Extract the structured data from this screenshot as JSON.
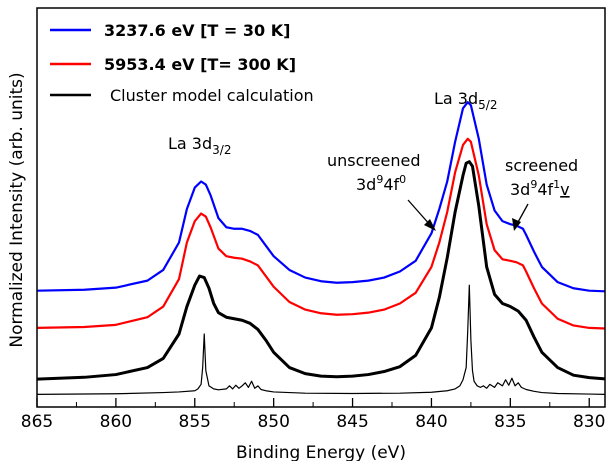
{
  "chart_data": {
    "type": "line",
    "xlabel": "Binding Energy (eV)",
    "ylabel": "Normalized Intensity (arb. units)",
    "xlim": [
      865,
      829
    ],
    "ylim": [
      0,
      1
    ],
    "x_reversed": true,
    "xticks": [
      865,
      860,
      855,
      850,
      845,
      840,
      835,
      830
    ],
    "y_tick_labels": false,
    "legend": {
      "placement": "top-left",
      "entries": [
        {
          "label": "3237.6 eV [T = 30 K]",
          "color": "#0000ff",
          "bold": true
        },
        {
          "label": "5953.4 eV [T= 300 K]",
          "color": "#ff0000",
          "bold": true
        },
        {
          "label": "Cluster model calculation",
          "color": "#000000",
          "bold": false
        }
      ]
    },
    "annotations": {
      "la32": {
        "main": "La 3d",
        "sub": "3/2"
      },
      "la52": {
        "main": "La 3d",
        "sub": "5/2"
      },
      "unscreened": {
        "line1": "unscreened",
        "line2_base1": "3d",
        "line2_sup1": "9",
        "line2_base2": "4f",
        "line2_sup2": "0"
      },
      "screened": {
        "line1": "screened",
        "line2_base1": "3d",
        "line2_sup1": "9",
        "line2_base2": "4f",
        "line2_sup2": "1",
        "line2_tail": "v"
      }
    },
    "series": [
      {
        "name": "3237.6 eV [T = 30 K]",
        "color": "#0000ff",
        "x": [
          865,
          862,
          860,
          858,
          857,
          856,
          855.5,
          855,
          854.6,
          854.3,
          854,
          853.5,
          853,
          852.5,
          852,
          851.5,
          851,
          850.5,
          850,
          849,
          848,
          847,
          846,
          845,
          844,
          843,
          842,
          841,
          840,
          839.5,
          839,
          838.5,
          838,
          837.7,
          837.5,
          837,
          836.5,
          836,
          835.5,
          835,
          834.6,
          834.2,
          834,
          833.5,
          833,
          832,
          831,
          830,
          829
        ],
        "y": [
          0.342,
          0.345,
          0.352,
          0.375,
          0.41,
          0.5,
          0.61,
          0.68,
          0.7,
          0.69,
          0.655,
          0.58,
          0.55,
          0.545,
          0.545,
          0.538,
          0.525,
          0.49,
          0.455,
          0.41,
          0.385,
          0.373,
          0.368,
          0.37,
          0.375,
          0.385,
          0.405,
          0.44,
          0.53,
          0.61,
          0.7,
          0.83,
          0.94,
          0.96,
          0.95,
          0.84,
          0.69,
          0.605,
          0.57,
          0.56,
          0.555,
          0.545,
          0.525,
          0.47,
          0.42,
          0.37,
          0.35,
          0.342,
          0.34
        ]
      },
      {
        "name": "5953.4 eV [T= 300 K]",
        "color": "#ff0000",
        "x": [
          865,
          862,
          860,
          858,
          857,
          856,
          855.5,
          855,
          854.6,
          854.3,
          854,
          853.5,
          853,
          852.5,
          852,
          851.5,
          851,
          850.5,
          850,
          849,
          848,
          847,
          846,
          845,
          844,
          843,
          842,
          841,
          840,
          839.5,
          839,
          838.5,
          838,
          837.7,
          837.5,
          837,
          836.5,
          836,
          835.5,
          835,
          834.6,
          834.2,
          834,
          833.5,
          833,
          832,
          831,
          830,
          829
        ],
        "y": [
          0.22,
          0.223,
          0.23,
          0.255,
          0.29,
          0.38,
          0.5,
          0.57,
          0.595,
          0.585,
          0.55,
          0.48,
          0.455,
          0.45,
          0.447,
          0.438,
          0.425,
          0.39,
          0.355,
          0.305,
          0.28,
          0.268,
          0.263,
          0.265,
          0.27,
          0.28,
          0.3,
          0.335,
          0.42,
          0.5,
          0.6,
          0.73,
          0.82,
          0.84,
          0.83,
          0.72,
          0.56,
          0.475,
          0.445,
          0.44,
          0.435,
          0.425,
          0.405,
          0.35,
          0.3,
          0.25,
          0.228,
          0.22,
          0.218
        ]
      },
      {
        "name": "Cluster model calculation",
        "color": "#000000",
        "x": [
          865,
          862,
          860,
          858,
          857,
          856,
          855.5,
          855,
          854.7,
          854.4,
          854.1,
          853.8,
          853.5,
          853,
          852.5,
          852,
          851.5,
          851,
          850.5,
          850,
          849,
          848,
          847,
          846,
          845,
          844,
          843,
          842,
          841,
          840,
          839.5,
          839,
          838.5,
          838,
          837.8,
          837.6,
          837.4,
          837,
          836.5,
          836,
          835.5,
          835,
          834.5,
          834,
          833.5,
          833,
          832,
          831,
          830,
          829
        ],
        "y": [
          0.052,
          0.058,
          0.067,
          0.09,
          0.12,
          0.2,
          0.29,
          0.36,
          0.39,
          0.385,
          0.35,
          0.3,
          0.27,
          0.255,
          0.25,
          0.245,
          0.235,
          0.215,
          0.18,
          0.14,
          0.09,
          0.07,
          0.062,
          0.06,
          0.062,
          0.067,
          0.077,
          0.093,
          0.13,
          0.22,
          0.32,
          0.45,
          0.6,
          0.72,
          0.76,
          0.765,
          0.75,
          0.62,
          0.42,
          0.33,
          0.3,
          0.29,
          0.275,
          0.245,
          0.19,
          0.14,
          0.09,
          0.065,
          0.057,
          0.053
        ]
      },
      {
        "name": "",
        "color": "#000000",
        "thin": true,
        "x": [
          865,
          860,
          857,
          856,
          855,
          854.8,
          854.6,
          854.5,
          854.4,
          854.3,
          854.1,
          853.8,
          853.5,
          853,
          852.8,
          852.6,
          852.4,
          852.2,
          852,
          851.8,
          851.6,
          851.4,
          851.2,
          851,
          850.8,
          850.5,
          850,
          848,
          845,
          842,
          840,
          839,
          838.5,
          838.2,
          838,
          837.8,
          837.7,
          837.6,
          837.5,
          837.4,
          837.3,
          837.1,
          836.9,
          836.7,
          836.5,
          836.3,
          836,
          835.8,
          835.5,
          835.3,
          835.1,
          834.9,
          834.7,
          834.5,
          834.3,
          834,
          833.5,
          833,
          832,
          830,
          829
        ],
        "y": [
          0.002,
          0.004,
          0.008,
          0.01,
          0.014,
          0.02,
          0.035,
          0.09,
          0.2,
          0.08,
          0.03,
          0.02,
          0.017,
          0.02,
          0.03,
          0.02,
          0.032,
          0.022,
          0.03,
          0.04,
          0.025,
          0.045,
          0.022,
          0.03,
          0.018,
          0.014,
          0.01,
          0.006,
          0.005,
          0.006,
          0.009,
          0.014,
          0.02,
          0.03,
          0.05,
          0.09,
          0.21,
          0.36,
          0.18,
          0.08,
          0.045,
          0.03,
          0.025,
          0.03,
          0.022,
          0.035,
          0.025,
          0.04,
          0.03,
          0.05,
          0.032,
          0.055,
          0.03,
          0.04,
          0.025,
          0.018,
          0.012,
          0.008,
          0.005,
          0.003,
          0.002
        ]
      }
    ]
  }
}
